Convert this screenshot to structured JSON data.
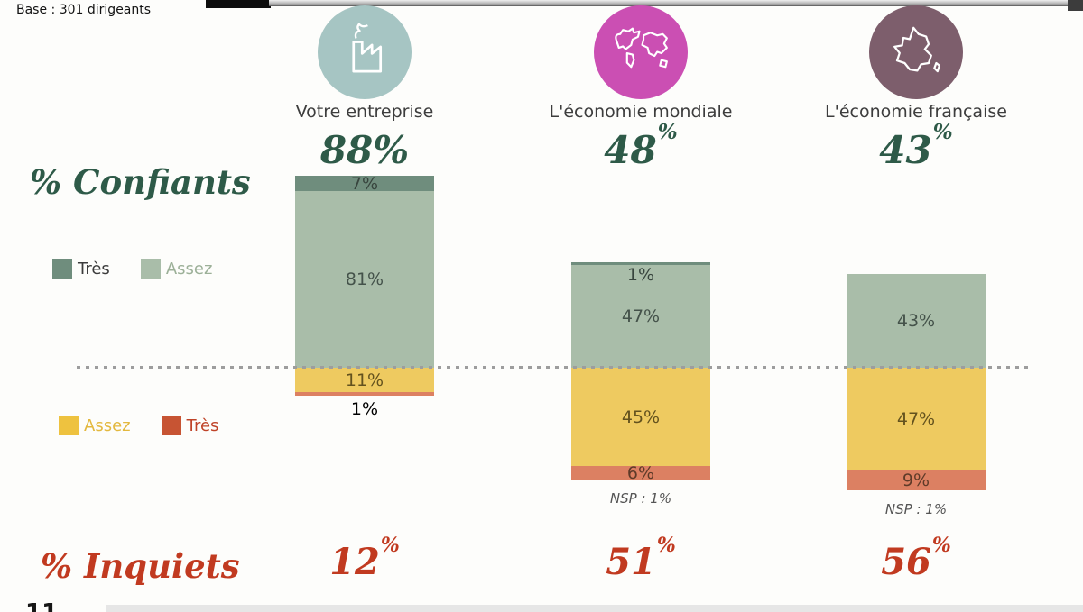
{
  "page": {
    "base_note": "Base : 301 dirigeants",
    "slide_number": "11"
  },
  "sections": {
    "confiants_title": "% Confiants",
    "inquiets_title": "% Inquiets"
  },
  "legend_confiants": [
    {
      "label": "Très",
      "color": "#6f8d7d"
    },
    {
      "label": "Assez",
      "color": "#a9bda9"
    }
  ],
  "legend_inquiets": [
    {
      "label": "Assez",
      "color": "#eec23f"
    },
    {
      "label": "Très",
      "color": "#c75433"
    }
  ],
  "chart_data": {
    "type": "bar",
    "stacked": true,
    "unit": "%",
    "orientation": "vertical, confident share above dotted baseline, worried share below",
    "categories": [
      "Votre entreprise",
      "L'économie mondiale",
      "L'économie française"
    ],
    "category_icons": [
      "factory-icon",
      "world-map-icon",
      "france-map-icon"
    ],
    "icon_circle_colors": [
      "#a6c5c3",
      "#cb4fb3",
      "#7d5e6c"
    ],
    "series": [
      {
        "name": "Très confiants",
        "color": "#6f8d7d",
        "values": [
          7,
          1,
          0
        ]
      },
      {
        "name": "Assez confiants",
        "color": "#a9bda9",
        "values": [
          81,
          47,
          43
        ]
      },
      {
        "name": "Assez inquiets",
        "color": "#eeca60",
        "values": [
          11,
          45,
          47
        ]
      },
      {
        "name": "Très inquiets",
        "color": "#dc8062",
        "values": [
          1,
          6,
          9
        ]
      }
    ],
    "totals_confiants": [
      {
        "value": "88",
        "sup": false
      },
      {
        "value": "48",
        "sup": true
      },
      {
        "value": "43",
        "sup": true
      }
    ],
    "totals_inquiets": [
      {
        "value": "12",
        "sup": true
      },
      {
        "value": "51",
        "sup": true
      },
      {
        "value": "56",
        "sup": true
      }
    ],
    "nsp_notes": [
      "",
      "NSP : 1%",
      "NSP : 1%"
    ],
    "colors": {
      "confident_text": "#2e5a48",
      "worried_text": "#c13a20"
    }
  }
}
